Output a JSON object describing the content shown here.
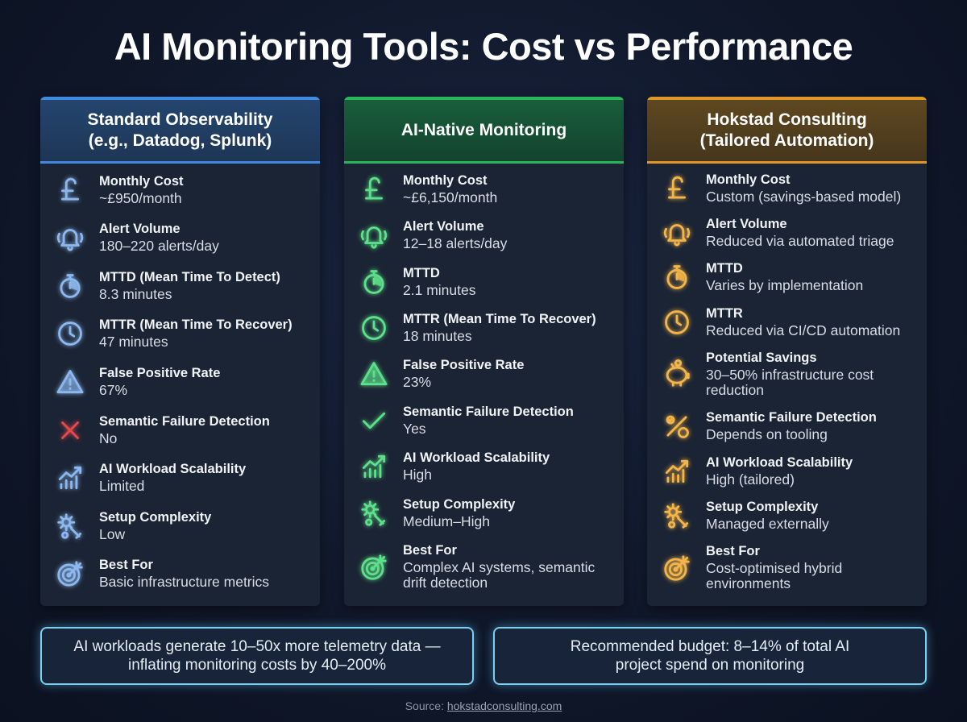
{
  "title": "AI Monitoring Tools: Cost vs Performance",
  "columns": [
    {
      "header": [
        "Standard Observability",
        "(e.g., Datadog, Splunk)"
      ],
      "rows": [
        {
          "label": "Monthly Cost",
          "value": "~£950/month"
        },
        {
          "label": "Alert Volume",
          "value": "180–220 alerts/day"
        },
        {
          "label": "MTTD (Mean Time To Detect)",
          "value": "8.3 minutes"
        },
        {
          "label": "MTTR (Mean Time To Recover)",
          "value": "47 minutes"
        },
        {
          "label": "False Positive Rate",
          "value": "67%"
        },
        {
          "label": "Semantic Failure Detection",
          "value": "No"
        },
        {
          "label": "AI Workload Scalability",
          "value": "Limited"
        },
        {
          "label": "Setup Complexity",
          "value": "Low"
        },
        {
          "label": "Best For",
          "value": "Basic infrastructure metrics"
        }
      ]
    },
    {
      "header": [
        "AI-Native Monitoring"
      ],
      "rows": [
        {
          "label": "Monthly Cost",
          "value": "~£6,150/month"
        },
        {
          "label": "Alert Volume",
          "value": "12–18 alerts/day"
        },
        {
          "label": "MTTD",
          "value": "2.1 minutes"
        },
        {
          "label": "MTTR (Mean Time To Recover)",
          "value": "18 minutes"
        },
        {
          "label": "False Positive Rate",
          "value": "23%"
        },
        {
          "label": "Semantic Failure Detection",
          "value": "Yes"
        },
        {
          "label": "AI Workload Scalability",
          "value": "High"
        },
        {
          "label": "Setup Complexity",
          "value": "Medium–High"
        },
        {
          "label": "Best For",
          "value": "Complex AI systems, semantic drift detection"
        }
      ]
    },
    {
      "header": [
        "Hokstad Consulting",
        "(Tailored Automation)"
      ],
      "rows": [
        {
          "label": "Monthly Cost",
          "value": "Custom (savings-based model)"
        },
        {
          "label": "Alert Volume",
          "value": "Reduced via automated triage"
        },
        {
          "label": "MTTD",
          "value": "Varies by implementation"
        },
        {
          "label": "MTTR",
          "value": "Reduced via CI/CD automation"
        },
        {
          "label": "Potential Savings",
          "value": "30–50% infrastructure cost reduction"
        },
        {
          "label": "Semantic Failure Detection",
          "value": "Depends on tooling"
        },
        {
          "label": "AI Workload Scalability",
          "value": "High (tailored)"
        },
        {
          "label": "Setup Complexity",
          "value": "Managed externally"
        },
        {
          "label": "Best For",
          "value": "Cost-optimised hybrid environments"
        }
      ]
    }
  ],
  "notes": [
    "AI workloads generate 10–50x more telemetry data — inflating monitoring costs by 40–200%",
    "Recommended budget: 8–14% of total AI project spend on monitoring"
  ],
  "source": {
    "prefix": "Source:",
    "link": "hokstadconsulting.com"
  }
}
